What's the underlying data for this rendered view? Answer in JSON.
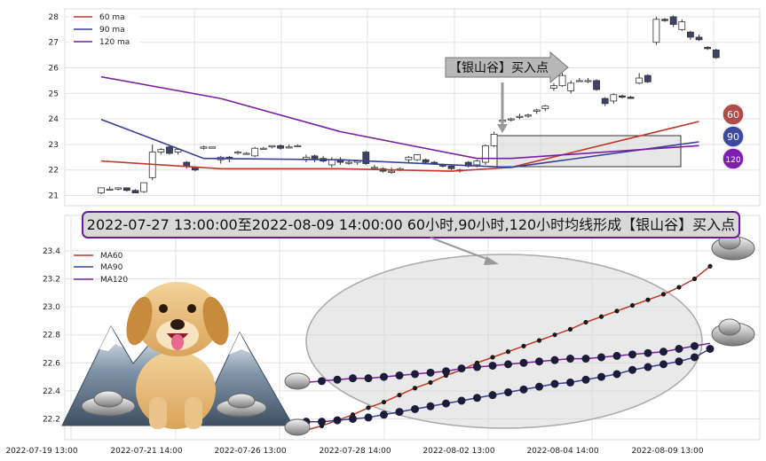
{
  "banner": "2022-07-27 13:00:00至2022-08-09 14:00:00 60小时,90小时,120小时均线形成【银山谷】买入点",
  "callout": "【银山谷】买入点",
  "badges": {
    "ma60": "60",
    "ma90": "90",
    "ma120": "120"
  },
  "colors": {
    "ma60": "#c0392b",
    "ma90": "#3b3f9a",
    "ma120": "#7b1fa2",
    "up_candle": "#ffffff",
    "down_candle": "#3d4266",
    "badge60": "#b24a4a",
    "badge90": "#3c4aa0",
    "badge120": "#7f1fb0"
  },
  "icons": {
    "dog": "golden-retriever-puppy-icon",
    "mountains": "snowy-mountains-icon",
    "ingot": "silver-ingot-icon"
  },
  "chart_data": [
    {
      "type": "candlestick",
      "title": "",
      "legend": [
        "60 ma",
        "90 ma",
        "120 ma"
      ],
      "legend_position": "top-left",
      "grid": true,
      "ylim": [
        20.7,
        28.4
      ],
      "yticks": [
        "21",
        "22",
        "23",
        "24",
        "25",
        "26",
        "27",
        "28"
      ],
      "candles": [
        {
          "o": 21.1,
          "h": 21.3,
          "l": 21.05,
          "c": 21.3
        },
        {
          "o": 21.25,
          "h": 21.35,
          "l": 21.2,
          "c": 21.25
        },
        {
          "o": 21.25,
          "h": 21.3,
          "l": 21.2,
          "c": 21.3
        },
        {
          "o": 21.3,
          "h": 21.3,
          "l": 21.15,
          "c": 21.2
        },
        {
          "o": 21.2,
          "h": 21.25,
          "l": 21.1,
          "c": 21.1
        },
        {
          "o": 21.15,
          "h": 21.5,
          "l": 21.1,
          "c": 21.5
        },
        {
          "o": 21.7,
          "h": 23.0,
          "l": 21.6,
          "c": 22.7
        },
        {
          "o": 22.7,
          "h": 22.85,
          "l": 22.6,
          "c": 22.8
        },
        {
          "o": 22.9,
          "h": 22.95,
          "l": 22.6,
          "c": 22.65
        },
        {
          "o": 22.7,
          "h": 22.85,
          "l": 22.6,
          "c": 22.8
        },
        {
          "o": 22.3,
          "h": 22.35,
          "l": 22.05,
          "c": 22.15
        },
        {
          "o": 22.1,
          "h": 22.15,
          "l": 21.95,
          "c": 22.0
        },
        {
          "o": 22.85,
          "h": 22.95,
          "l": 22.8,
          "c": 22.9
        },
        {
          "o": 22.85,
          "h": 22.9,
          "l": 22.85,
          "c": 22.9
        },
        {
          "o": 22.4,
          "h": 22.55,
          "l": 22.25,
          "c": 22.5
        },
        {
          "o": 22.5,
          "h": 22.55,
          "l": 22.3,
          "c": 22.45
        },
        {
          "o": 22.7,
          "h": 22.75,
          "l": 22.6,
          "c": 22.7
        },
        {
          "o": 22.65,
          "h": 22.7,
          "l": 22.6,
          "c": 22.65
        },
        {
          "o": 22.55,
          "h": 22.9,
          "l": 22.5,
          "c": 22.85
        },
        {
          "o": 22.85,
          "h": 22.9,
          "l": 22.8,
          "c": 22.85
        },
        {
          "o": 22.9,
          "h": 22.95,
          "l": 22.85,
          "c": 22.95
        },
        {
          "o": 22.95,
          "h": 23.0,
          "l": 22.8,
          "c": 22.85
        },
        {
          "o": 22.9,
          "h": 23.0,
          "l": 22.85,
          "c": 22.9
        },
        {
          "o": 22.95,
          "h": 23.0,
          "l": 22.9,
          "c": 22.95
        },
        {
          "o": 22.4,
          "h": 22.6,
          "l": 22.3,
          "c": 22.5
        },
        {
          "o": 22.55,
          "h": 22.6,
          "l": 22.3,
          "c": 22.4
        },
        {
          "o": 22.45,
          "h": 22.55,
          "l": 22.3,
          "c": 22.35
        },
        {
          "o": 22.2,
          "h": 22.5,
          "l": 22.1,
          "c": 22.4
        },
        {
          "o": 22.4,
          "h": 22.5,
          "l": 22.2,
          "c": 22.3
        },
        {
          "o": 22.3,
          "h": 22.4,
          "l": 22.2,
          "c": 22.3
        },
        {
          "o": 22.3,
          "h": 22.4,
          "l": 22.2,
          "c": 22.35
        },
        {
          "o": 22.7,
          "h": 22.75,
          "l": 22.2,
          "c": 22.25
        },
        {
          "o": 22.1,
          "h": 22.2,
          "l": 22.0,
          "c": 22.1
        },
        {
          "o": 22.05,
          "h": 22.1,
          "l": 21.9,
          "c": 21.95
        },
        {
          "o": 21.9,
          "h": 22.1,
          "l": 21.85,
          "c": 21.95
        },
        {
          "o": 22.0,
          "h": 22.1,
          "l": 21.95,
          "c": 22.05
        },
        {
          "o": 22.4,
          "h": 22.55,
          "l": 22.3,
          "c": 22.5
        },
        {
          "o": 22.4,
          "h": 22.6,
          "l": 22.35,
          "c": 22.6
        },
        {
          "o": 22.4,
          "h": 22.45,
          "l": 22.25,
          "c": 22.3
        },
        {
          "o": 22.3,
          "h": 22.35,
          "l": 22.2,
          "c": 22.25
        },
        {
          "o": 22.2,
          "h": 22.25,
          "l": 22.1,
          "c": 22.15
        },
        {
          "o": 22.15,
          "h": 22.2,
          "l": 22.0,
          "c": 22.05
        },
        {
          "o": 22.0,
          "h": 22.05,
          "l": 21.9,
          "c": 22.0
        },
        {
          "o": 22.3,
          "h": 22.35,
          "l": 22.1,
          "c": 22.15
        },
        {
          "o": 22.2,
          "h": 22.4,
          "l": 22.1,
          "c": 22.35
        },
        {
          "o": 22.3,
          "h": 23.0,
          "l": 22.2,
          "c": 22.95
        },
        {
          "o": 22.95,
          "h": 23.5,
          "l": 22.9,
          "c": 23.4
        },
        {
          "o": 23.9,
          "h": 24.0,
          "l": 23.85,
          "c": 23.95
        },
        {
          "o": 24.0,
          "h": 24.05,
          "l": 23.9,
          "c": 24.0
        },
        {
          "o": 24.1,
          "h": 24.2,
          "l": 24.0,
          "c": 24.1
        },
        {
          "o": 24.15,
          "h": 24.2,
          "l": 24.05,
          "c": 24.15
        },
        {
          "o": 24.3,
          "h": 24.4,
          "l": 24.2,
          "c": 24.35
        },
        {
          "o": 24.4,
          "h": 24.55,
          "l": 24.3,
          "c": 24.5
        },
        {
          "o": 25.2,
          "h": 25.4,
          "l": 25.1,
          "c": 25.3
        },
        {
          "o": 25.3,
          "h": 25.8,
          "l": 25.25,
          "c": 25.7
        },
        {
          "o": 25.1,
          "h": 25.5,
          "l": 25.0,
          "c": 25.4
        },
        {
          "o": 25.5,
          "h": 25.6,
          "l": 25.45,
          "c": 25.5
        },
        {
          "o": 25.5,
          "h": 25.6,
          "l": 25.4,
          "c": 25.5
        },
        {
          "o": 25.5,
          "h": 25.55,
          "l": 25.1,
          "c": 25.15
        },
        {
          "o": 24.8,
          "h": 24.85,
          "l": 24.5,
          "c": 24.6
        },
        {
          "o": 24.7,
          "h": 25.0,
          "l": 24.6,
          "c": 24.95
        },
        {
          "o": 24.9,
          "h": 24.95,
          "l": 24.8,
          "c": 24.85
        },
        {
          "o": 24.85,
          "h": 24.9,
          "l": 24.8,
          "c": 24.8
        },
        {
          "o": 25.4,
          "h": 25.8,
          "l": 25.35,
          "c": 25.6
        },
        {
          "o": 25.7,
          "h": 25.75,
          "l": 25.4,
          "c": 25.45
        },
        {
          "o": 27.0,
          "h": 28.0,
          "l": 26.9,
          "c": 27.9
        },
        {
          "o": 27.9,
          "h": 27.95,
          "l": 27.8,
          "c": 27.85
        },
        {
          "o": 28.0,
          "h": 28.05,
          "l": 27.6,
          "c": 27.7
        },
        {
          "o": 27.5,
          "h": 27.9,
          "l": 27.45,
          "c": 27.8
        },
        {
          "o": 27.4,
          "h": 27.45,
          "l": 27.1,
          "c": 27.2
        },
        {
          "o": 27.2,
          "h": 27.3,
          "l": 27.05,
          "c": 27.1
        },
        {
          "o": 26.8,
          "h": 26.85,
          "l": 26.7,
          "c": 26.75
        },
        {
          "o": 26.7,
          "h": 26.75,
          "l": 26.35,
          "c": 26.4
        }
      ],
      "series": [
        {
          "name": "60 ma",
          "x": [
            0,
            14,
            28,
            41,
            48,
            70
          ],
          "values": [
            22.35,
            22.05,
            22.05,
            21.95,
            22.1,
            23.9
          ]
        },
        {
          "name": "90 ma",
          "x": [
            0,
            12,
            28,
            41,
            48,
            70
          ],
          "values": [
            23.98,
            22.45,
            22.4,
            22.2,
            22.1,
            23.1
          ]
        },
        {
          "name": "120 ma",
          "x": [
            0,
            14,
            28,
            44,
            48,
            70
          ],
          "values": [
            25.65,
            24.8,
            23.5,
            22.45,
            22.45,
            22.95
          ]
        }
      ]
    },
    {
      "type": "line",
      "title": "",
      "legend": [
        "MA60",
        "MA90",
        "MA120"
      ],
      "legend_position": "top-left",
      "grid": true,
      "ylim": [
        22.1,
        23.45
      ],
      "yticks": [
        "22.2",
        "22.4",
        "22.6",
        "22.8",
        "23.0",
        "23.2",
        "23.4"
      ],
      "xticks": [
        "2022-07-19 13:00",
        "2022-07-21 14:00",
        "2022-07-26 13:00",
        "2022-07-28 14:00",
        "2022-08-02 13:00",
        "2022-08-04 14:00",
        "2022-08-09 13:00"
      ],
      "series": [
        {
          "name": "MA60",
          "values": [
            22.12,
            22.15,
            22.19,
            22.23,
            22.28,
            22.32,
            22.37,
            22.42,
            22.46,
            22.51,
            22.55,
            22.6,
            22.64,
            22.68,
            22.72,
            22.76,
            22.8,
            22.84,
            22.89,
            22.93,
            22.97,
            23.01,
            23.05,
            23.09,
            23.14,
            23.2,
            23.29
          ]
        },
        {
          "name": "MA90",
          "values": [
            22.18,
            22.18,
            22.19,
            22.2,
            22.21,
            22.23,
            22.25,
            22.27,
            22.29,
            22.31,
            22.33,
            22.35,
            22.37,
            22.39,
            22.41,
            22.43,
            22.45,
            22.46,
            22.48,
            22.5,
            22.52,
            22.55,
            22.57,
            22.59,
            22.61,
            22.64,
            22.7
          ]
        },
        {
          "name": "MA120",
          "values": [
            22.46,
            22.47,
            22.48,
            22.49,
            22.49,
            22.5,
            22.51,
            22.52,
            22.53,
            22.54,
            22.56,
            22.57,
            22.58,
            22.59,
            22.6,
            22.61,
            22.62,
            22.63,
            22.63,
            22.64,
            22.65,
            22.66,
            22.67,
            22.68,
            22.7,
            22.72,
            22.74
          ]
        }
      ]
    }
  ]
}
